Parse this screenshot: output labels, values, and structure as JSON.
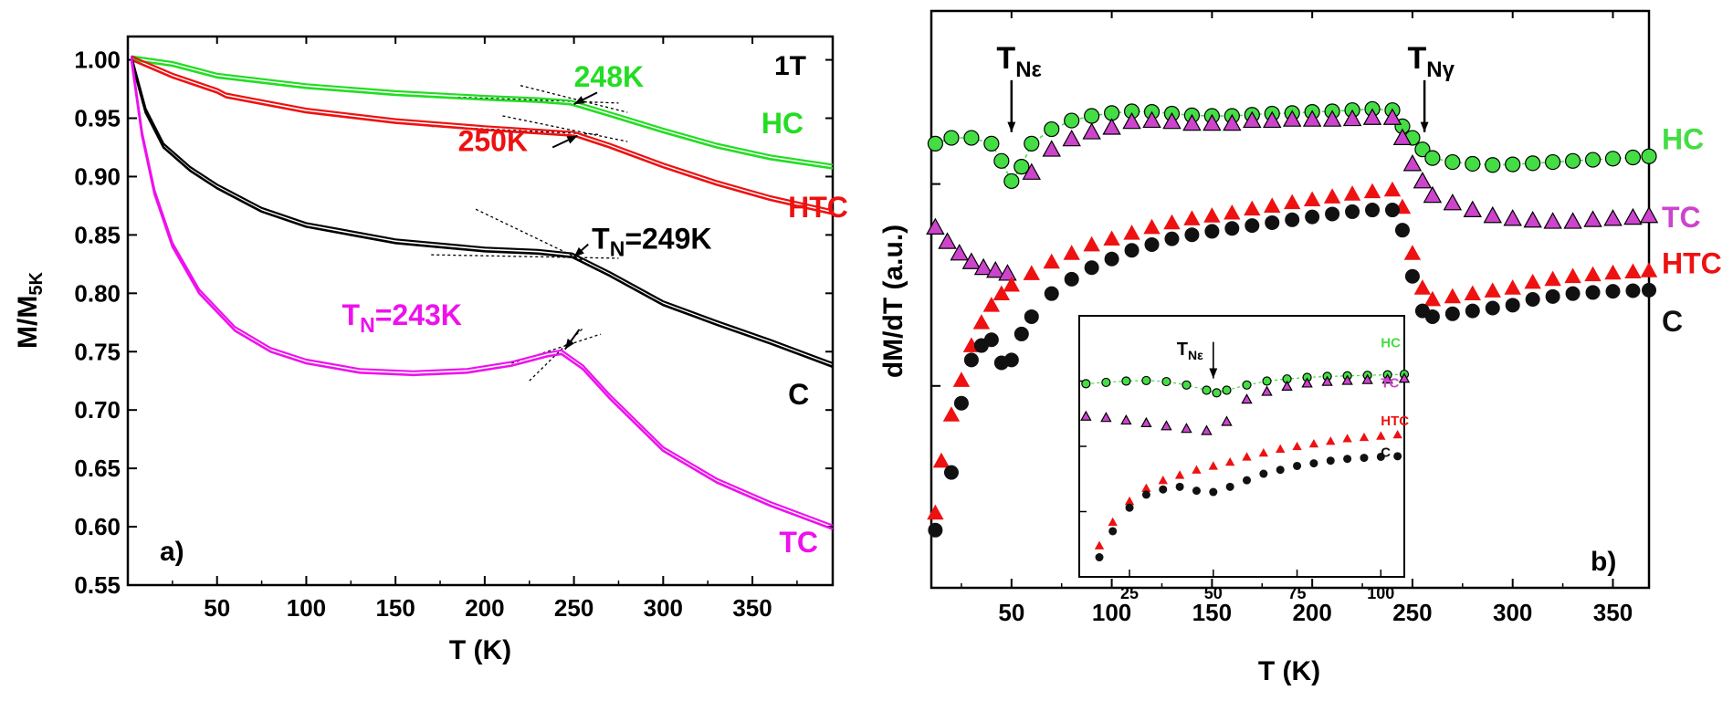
{
  "chart_data": [
    {
      "type": "line",
      "panel": "a)",
      "xlabel": "T (K)",
      "ylabel": "M/M",
      "ylabel_sub": "5K",
      "xlim": [
        0,
        395
      ],
      "ylim": [
        0.55,
        1.02
      ],
      "xticks": [
        50,
        100,
        150,
        200,
        250,
        300,
        350
      ],
      "yticks": [
        "0.55",
        "0.60",
        "0.65",
        "0.70",
        "0.75",
        "0.80",
        "0.85",
        "0.90",
        "0.95",
        "1.00"
      ],
      "field_label": "1T",
      "series": [
        {
          "name": "HC",
          "color": "#22dd22",
          "label_at": [
            355,
            0.937
          ],
          "x": [
            2,
            25,
            50,
            100,
            150,
            200,
            230,
            248,
            270,
            300,
            330,
            360,
            395
          ],
          "y": [
            1.0,
            0.995,
            0.985,
            0.976,
            0.97,
            0.966,
            0.964,
            0.962,
            0.952,
            0.938,
            0.925,
            0.915,
            0.907
          ]
        },
        {
          "name": "HTC",
          "color": "#ee1111",
          "label_at": [
            370,
            0.865
          ],
          "x": [
            2,
            25,
            50,
            55,
            100,
            150,
            200,
            230,
            250,
            270,
            300,
            330,
            360,
            395
          ],
          "y": [
            1.0,
            0.985,
            0.972,
            0.968,
            0.955,
            0.946,
            0.94,
            0.937,
            0.935,
            0.925,
            0.908,
            0.893,
            0.88,
            0.868
          ]
        },
        {
          "name": "C",
          "color": "#000000",
          "label_at": [
            370,
            0.705
          ],
          "x": [
            2,
            10,
            20,
            35,
            50,
            75,
            100,
            150,
            200,
            230,
            249,
            270,
            300,
            330,
            360,
            395
          ],
          "y": [
            1.0,
            0.955,
            0.925,
            0.905,
            0.89,
            0.87,
            0.857,
            0.843,
            0.836,
            0.834,
            0.831,
            0.815,
            0.79,
            0.773,
            0.757,
            0.737
          ]
        },
        {
          "name": "TC",
          "color": "#ee11ee",
          "label_at": [
            365,
            0.578
          ],
          "x": [
            2,
            8,
            15,
            25,
            40,
            60,
            80,
            100,
            130,
            160,
            190,
            215,
            235,
            243,
            255,
            270,
            300,
            330,
            360,
            395
          ],
          "y": [
            1.0,
            0.935,
            0.885,
            0.84,
            0.8,
            0.768,
            0.75,
            0.74,
            0.732,
            0.73,
            0.732,
            0.738,
            0.746,
            0.748,
            0.735,
            0.71,
            0.665,
            0.638,
            0.618,
            0.598
          ]
        }
      ],
      "annotations": [
        {
          "text": "248K",
          "color": "#22dd22",
          "at": [
            250,
            0.977
          ]
        },
        {
          "text": "250K",
          "color": "#ee1111",
          "at": [
            185,
            0.922
          ]
        },
        {
          "text": "T",
          "sub": "N",
          "rest": "=249K",
          "color": "#000000",
          "at": [
            260,
            0.838
          ]
        },
        {
          "text": "T",
          "sub": "N",
          "rest": "=243K",
          "color": "#ee11ee",
          "at": [
            120,
            0.773
          ]
        }
      ]
    },
    {
      "type": "scatter",
      "panel": "b)",
      "xlabel": "T (K)",
      "ylabel": "dM/dT (a.u.)",
      "xlim": [
        10,
        368
      ],
      "ylim": [
        0,
        1
      ],
      "xticks": [
        50,
        100,
        150,
        200,
        250,
        300,
        350
      ],
      "annotations": [
        {
          "text": "T",
          "sub": "Nε",
          "at": [
            48,
            0.9
          ]
        },
        {
          "text": "T",
          "sub": "Nγ",
          "at": [
            253,
            0.9
          ]
        }
      ],
      "series": [
        {
          "name": "HC",
          "color": "#44dd44",
          "marker": "circle",
          "label_at": [
            378,
            0.76
          ],
          "x": [
            12,
            20,
            30,
            40,
            45,
            50,
            55,
            60,
            70,
            80,
            90,
            100,
            110,
            120,
            130,
            140,
            150,
            160,
            170,
            180,
            190,
            200,
            210,
            220,
            230,
            240,
            245,
            250,
            255,
            260,
            270,
            280,
            290,
            300,
            310,
            320,
            330,
            340,
            350,
            360,
            368
          ],
          "y": [
            0.77,
            0.78,
            0.78,
            0.77,
            0.74,
            0.705,
            0.73,
            0.77,
            0.795,
            0.81,
            0.818,
            0.823,
            0.826,
            0.825,
            0.822,
            0.819,
            0.818,
            0.818,
            0.82,
            0.822,
            0.823,
            0.825,
            0.826,
            0.828,
            0.83,
            0.828,
            0.8,
            0.78,
            0.76,
            0.745,
            0.738,
            0.735,
            0.733,
            0.734,
            0.736,
            0.738,
            0.74,
            0.742,
            0.744,
            0.746,
            0.748
          ]
        },
        {
          "name": "TC",
          "color": "#cc44cc",
          "marker": "triangle",
          "label_at": [
            378,
            0.625
          ],
          "x": [
            12,
            18,
            24,
            30,
            36,
            42,
            48,
            60,
            70,
            80,
            90,
            100,
            110,
            120,
            130,
            140,
            150,
            160,
            170,
            180,
            190,
            200,
            210,
            220,
            230,
            240,
            245,
            250,
            255,
            260,
            270,
            280,
            290,
            300,
            310,
            320,
            330,
            340,
            350,
            360,
            368
          ],
          "y": [
            0.625,
            0.6,
            0.58,
            0.565,
            0.555,
            0.55,
            0.545,
            0.72,
            0.76,
            0.778,
            0.79,
            0.798,
            0.808,
            0.81,
            0.808,
            0.805,
            0.805,
            0.805,
            0.81,
            0.81,
            0.812,
            0.812,
            0.812,
            0.813,
            0.815,
            0.815,
            0.78,
            0.735,
            0.705,
            0.68,
            0.667,
            0.655,
            0.645,
            0.64,
            0.637,
            0.635,
            0.635,
            0.638,
            0.64,
            0.642,
            0.645
          ]
        },
        {
          "name": "HTC",
          "color": "#ee1111",
          "marker": "triangle",
          "label_at": [
            378,
            0.545
          ],
          "x": [
            12,
            15,
            20,
            25,
            30,
            35,
            40,
            45,
            50,
            60,
            70,
            80,
            90,
            100,
            110,
            120,
            130,
            140,
            150,
            160,
            170,
            180,
            190,
            200,
            210,
            220,
            230,
            240,
            245,
            250,
            255,
            260,
            270,
            280,
            290,
            300,
            310,
            320,
            330,
            340,
            350,
            360,
            368
          ],
          "y": [
            0.13,
            0.22,
            0.3,
            0.36,
            0.42,
            0.46,
            0.49,
            0.51,
            0.525,
            0.545,
            0.565,
            0.58,
            0.595,
            0.605,
            0.615,
            0.625,
            0.633,
            0.64,
            0.645,
            0.65,
            0.657,
            0.662,
            0.668,
            0.673,
            0.678,
            0.683,
            0.687,
            0.69,
            0.66,
            0.58,
            0.52,
            0.5,
            0.505,
            0.51,
            0.515,
            0.52,
            0.53,
            0.535,
            0.54,
            0.543,
            0.546,
            0.548,
            0.55
          ]
        },
        {
          "name": "C",
          "color": "#111111",
          "marker": "circle",
          "label_at": [
            378,
            0.445
          ],
          "x": [
            12,
            20,
            25,
            30,
            35,
            40,
            45,
            50,
            55,
            60,
            70,
            80,
            90,
            100,
            110,
            120,
            130,
            140,
            150,
            160,
            170,
            180,
            190,
            200,
            210,
            220,
            230,
            240,
            245,
            250,
            255,
            260,
            270,
            280,
            290,
            300,
            310,
            320,
            330,
            340,
            350,
            360,
            368
          ],
          "y": [
            0.1,
            0.2,
            0.32,
            0.395,
            0.42,
            0.43,
            0.39,
            0.395,
            0.44,
            0.47,
            0.51,
            0.535,
            0.555,
            0.57,
            0.585,
            0.595,
            0.605,
            0.612,
            0.618,
            0.623,
            0.628,
            0.633,
            0.638,
            0.643,
            0.648,
            0.652,
            0.655,
            0.655,
            0.62,
            0.54,
            0.48,
            0.47,
            0.475,
            0.48,
            0.485,
            0.49,
            0.5,
            0.505,
            0.51,
            0.512,
            0.514,
            0.515,
            0.516
          ]
        }
      ],
      "inset": {
        "xlim": [
          10,
          107
        ],
        "ylim": [
          0,
          1
        ],
        "xticks": [
          25,
          50,
          75,
          100
        ],
        "annotation": {
          "text": "T",
          "sub": "Nε",
          "at": [
            50,
            0.85
          ]
        },
        "series": [
          {
            "name": "HC",
            "color": "#44dd44",
            "marker": "circle",
            "label_at": [
              100,
              0.88
            ],
            "x": [
              12,
              18,
              24,
              30,
              36,
              42,
              48,
              51,
              54,
              60,
              66,
              72,
              78,
              84,
              90,
              96,
              102,
              107
            ],
            "y": [
              0.74,
              0.745,
              0.75,
              0.752,
              0.748,
              0.735,
              0.715,
              0.705,
              0.715,
              0.735,
              0.75,
              0.758,
              0.764,
              0.768,
              0.77,
              0.772,
              0.774,
              0.776
            ]
          },
          {
            "name": "TC",
            "color": "#cc44cc",
            "marker": "triangle",
            "label_at": [
              100,
              0.725
            ],
            "x": [
              12,
              18,
              24,
              30,
              36,
              42,
              48,
              54,
              60,
              66,
              72,
              78,
              84,
              90,
              96,
              102,
              107
            ],
            "y": [
              0.615,
              0.61,
              0.6,
              0.59,
              0.578,
              0.568,
              0.56,
              0.595,
              0.68,
              0.71,
              0.73,
              0.742,
              0.748,
              0.752,
              0.755,
              0.757,
              0.76
            ]
          },
          {
            "name": "HTC",
            "color": "#ee1111",
            "marker": "triangle",
            "label_at": [
              100,
              0.58
            ],
            "x": [
              16,
              20,
              25,
              30,
              35,
              40,
              45,
              50,
              55,
              60,
              65,
              70,
              75,
              80,
              85,
              90,
              95,
              100,
              105
            ],
            "y": [
              0.12,
              0.21,
              0.29,
              0.34,
              0.37,
              0.39,
              0.41,
              0.425,
              0.44,
              0.46,
              0.475,
              0.49,
              0.5,
              0.51,
              0.52,
              0.53,
              0.535,
              0.54,
              0.545
            ]
          },
          {
            "name": "C",
            "color": "#111111",
            "marker": "circle",
            "label_at": [
              100,
              0.46
            ],
            "x": [
              16,
              20,
              25,
              30,
              35,
              40,
              45,
              50,
              55,
              60,
              65,
              70,
              75,
              80,
              85,
              90,
              95,
              100,
              105
            ],
            "y": [
              0.075,
              0.175,
              0.265,
              0.315,
              0.335,
              0.345,
              0.33,
              0.325,
              0.345,
              0.37,
              0.395,
              0.41,
              0.425,
              0.435,
              0.445,
              0.452,
              0.456,
              0.46,
              0.462
            ]
          }
        ]
      }
    }
  ]
}
